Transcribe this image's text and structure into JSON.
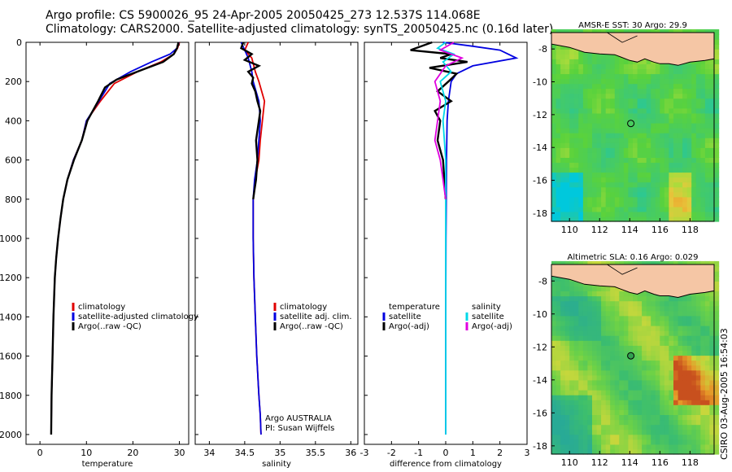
{
  "header": {
    "line1": "Argo profile: CS 5900026_95 24-Apr-2005 20050425_273 12.537S 114.068E",
    "line2": "Climatology: CARS2000. Satellite-adjusted climatology: synTS_20050425.nc (0.16d later)"
  },
  "signature": "CSIRO 03-Aug-2005 16:54:03",
  "colors": {
    "climatology": "#e00000",
    "satellite": "#0000e0",
    "argo": "#000000",
    "salinity_satellite": "#00d8e8",
    "salinity_argo": "#e000e0",
    "land": "#f5c6a5"
  },
  "chart_data": [
    {
      "type": "line",
      "xlabel": "temperature",
      "ylabel": "",
      "xlim": [
        -3,
        32
      ],
      "ylim": [
        2050,
        0
      ],
      "xticks": [
        "0",
        "10",
        "20",
        "30"
      ],
      "yticks": [
        "0",
        "200",
        "400",
        "600",
        "800",
        "1000",
        "1200",
        "1400",
        "1600",
        "1800",
        "2000"
      ],
      "legend": [
        "climatology",
        "satellite-adjusted climatology",
        "Argo(..raw -QC)"
      ],
      "series": [
        {
          "name": "climatology",
          "x": [
            30.0,
            29.6,
            28.8,
            26.0,
            21.0,
            16.0,
            13.0,
            10.0,
            9.0,
            7.2,
            5.9,
            5.0,
            4.4,
            3.9,
            3.5,
            3.2,
            2.9,
            2.7,
            2.5,
            2.4
          ],
          "y": [
            0,
            30,
            60,
            100,
            150,
            210,
            300,
            400,
            500,
            600,
            700,
            800,
            900,
            1000,
            1100,
            1200,
            1400,
            1600,
            1800,
            2000
          ]
        },
        {
          "name": "satellite-adjusted climatology",
          "x": [
            29.9,
            29.5,
            28.0,
            24.0,
            19.5,
            15.0,
            12.7,
            10.0,
            9.0,
            7.2,
            5.9,
            5.0,
            4.4,
            3.9,
            3.5,
            3.2,
            2.9,
            2.7,
            2.5,
            2.4
          ],
          "y": [
            0,
            30,
            60,
            100,
            150,
            210,
            300,
            400,
            500,
            600,
            700,
            800,
            900,
            1000,
            1100,
            1200,
            1400,
            1600,
            1800,
            2000
          ]
        },
        {
          "name": "Argo(..raw -QC)",
          "x": [
            29.8,
            29.5,
            28.8,
            26.5,
            22.0,
            16.5,
            14.0,
            12.5,
            10.2,
            9.0,
            7.3,
            5.9,
            5.0,
            4.4,
            3.9,
            3.5,
            3.2,
            2.9,
            2.7,
            2.5,
            2.4
          ],
          "y": [
            0,
            30,
            60,
            100,
            140,
            190,
            230,
            300,
            400,
            500,
            600,
            700,
            800,
            900,
            1000,
            1100,
            1200,
            1400,
            1600,
            1800,
            2000
          ]
        }
      ]
    },
    {
      "type": "line",
      "xlabel": "salinity",
      "ylabel": "",
      "xlim": [
        33.8,
        36.1
      ],
      "ylim": [
        2050,
        0
      ],
      "xticks": [
        "34",
        "34.5",
        "35",
        "35.5",
        "36"
      ],
      "yticks": [],
      "legend": [
        "climatology",
        "satellite adj. clim.",
        "Argo(..raw -QC)"
      ],
      "annotations": [
        "Argo AUSTRALIA",
        "PI: Susan Wijffels"
      ],
      "series": [
        {
          "name": "climatology",
          "x": [
            34.55,
            34.5,
            34.6,
            34.65,
            34.7,
            34.78,
            34.75,
            34.72,
            34.7,
            34.65,
            34.62,
            34.62,
            34.63,
            34.65,
            34.67,
            34.7,
            34.72,
            34.73
          ],
          "y": [
            0,
            40,
            80,
            150,
            200,
            300,
            400,
            500,
            600,
            700,
            800,
            1000,
            1200,
            1400,
            1600,
            1800,
            1900,
            2000
          ]
        },
        {
          "name": "satellite adj. clim.",
          "x": [
            34.45,
            34.5,
            34.55,
            34.6,
            34.62,
            34.7,
            34.72,
            34.7,
            34.68,
            34.64,
            34.62,
            34.62,
            34.63,
            34.65,
            34.67,
            34.7,
            34.72,
            34.73
          ],
          "y": [
            0,
            40,
            80,
            150,
            200,
            300,
            400,
            500,
            600,
            700,
            800,
            1000,
            1200,
            1400,
            1600,
            1800,
            1900,
            2000
          ]
        },
        {
          "name": "Argo(..raw -QC)",
          "x": [
            34.48,
            34.45,
            34.6,
            34.5,
            34.7,
            34.55,
            34.62,
            34.6,
            34.65,
            34.68,
            34.72,
            34.7,
            34.66,
            34.68,
            34.66,
            34.64,
            34.62
          ],
          "y": [
            0,
            30,
            60,
            90,
            120,
            150,
            180,
            210,
            250,
            300,
            350,
            400,
            500,
            600,
            700,
            750,
            800
          ]
        }
      ]
    },
    {
      "type": "line",
      "xlabel": "difference from climatology",
      "ylabel": "",
      "xlim": [
        -3,
        3
      ],
      "ylim": [
        2050,
        0
      ],
      "xticks": [
        "-3",
        "-2",
        "-1",
        "0",
        "1",
        "2",
        "3"
      ],
      "yticks": [],
      "legend": [
        "temperature",
        "satellite",
        "Argo(-adj)",
        "salinity",
        "satellite",
        "Argo(-adj)"
      ],
      "series": [
        {
          "name": "satellite",
          "x": [
            -0.1,
            1.0,
            2.0,
            2.6,
            1.0,
            0.4,
            0.2,
            0.1,
            0.05,
            0.03,
            0.02,
            0.01,
            0.0,
            0.0,
            0.0
          ],
          "y": [
            0,
            20,
            40,
            80,
            120,
            160,
            200,
            300,
            400,
            600,
            800,
            1000,
            1400,
            1800,
            2000
          ]
        },
        {
          "name": "Argo(-adj)",
          "x": [
            -0.5,
            -1.3,
            0.2,
            -0.2,
            0.8,
            -0.6,
            0.4,
            0.1,
            -0.3,
            0.2,
            -0.4,
            -0.2,
            -0.3,
            -0.1,
            -0.05,
            0.0
          ],
          "y": [
            0,
            40,
            60,
            80,
            100,
            130,
            160,
            200,
            250,
            300,
            350,
            400,
            500,
            600,
            700,
            800
          ]
        },
        {
          "name": "salinity satellite",
          "x": [
            0.0,
            -0.3,
            0.3,
            -0.1,
            0.2,
            -0.2,
            0.0,
            -0.1,
            0.0,
            0.0,
            0.0,
            0.0
          ],
          "y": [
            0,
            30,
            60,
            100,
            150,
            200,
            300,
            400,
            600,
            1000,
            1500,
            2000
          ]
        },
        {
          "name": "salinity Argo(-adj)",
          "x": [
            0.3,
            -0.2,
            0.6,
            0.0,
            -0.4,
            -0.2,
            -0.3,
            -0.4,
            -0.2,
            -0.1,
            -0.05,
            0.0
          ],
          "y": [
            0,
            40,
            80,
            120,
            200,
            300,
            400,
            500,
            600,
            700,
            750,
            800
          ]
        }
      ]
    },
    {
      "type": "heatmap",
      "title": "AMSR-E SST: 30 Argo: 29.9",
      "xlim": [
        108.8,
        119.6
      ],
      "ylim": [
        -18.5,
        -7.0
      ],
      "xticks": [
        "110",
        "112",
        "114",
        "116",
        "118"
      ],
      "yticks": [
        "-8",
        "-10",
        "-12",
        "-14",
        "-16",
        "-18"
      ],
      "marker": {
        "lon": 114.068,
        "lat": -12.537
      }
    },
    {
      "type": "heatmap",
      "title": "Altimetric SLA: 0.16 Argo: 0.029",
      "xlim": [
        108.8,
        119.6
      ],
      "ylim": [
        -18.5,
        -7.0
      ],
      "xticks": [
        "110",
        "112",
        "114",
        "116",
        "118"
      ],
      "yticks": [
        "-8",
        "-10",
        "-12",
        "-14",
        "-16",
        "-18"
      ],
      "marker": {
        "lon": 114.068,
        "lat": -12.537
      }
    }
  ]
}
